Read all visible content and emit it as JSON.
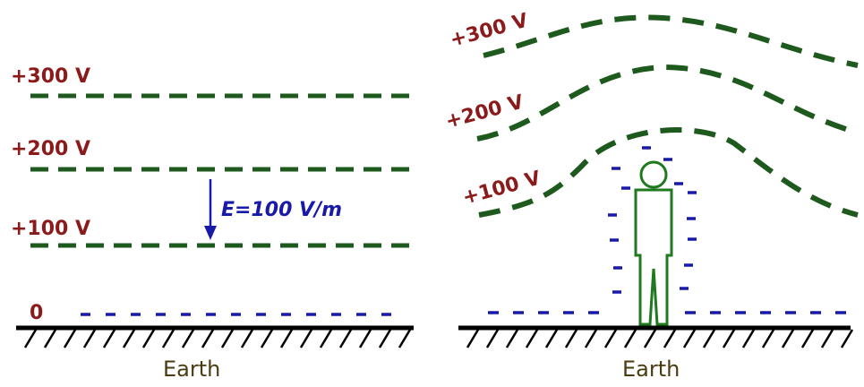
{
  "colors": {
    "label": "#8b1a1a",
    "equipotential": "#1e5a1e",
    "charge": "#1a1aa8",
    "field_label": "#1a1aa8",
    "person": "#1f7a1f",
    "ground": "#000000",
    "earth_text": "#4a3c10"
  },
  "left_panel": {
    "labels": {
      "v300": "+300 V",
      "v200": "+200 V",
      "v100": "+100 V",
      "zero": "0"
    },
    "field_label": "E=100 V/m",
    "earth_label": "Earth"
  },
  "right_panel": {
    "labels": {
      "v300": "+300 V",
      "v200": "+200 V",
      "v100": "+100 V"
    },
    "earth_label": "Earth",
    "figure": "person-icon"
  }
}
